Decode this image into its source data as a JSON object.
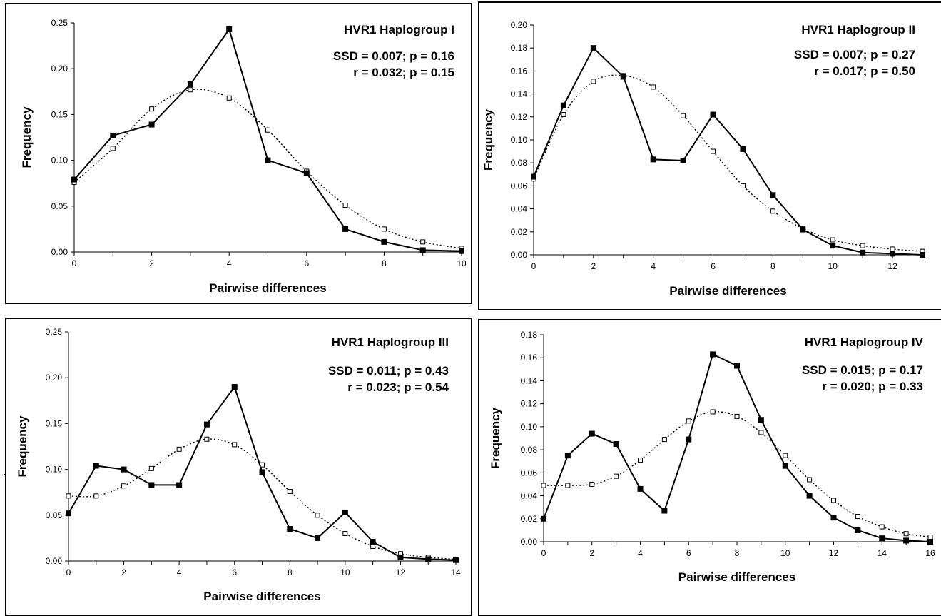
{
  "chart_data": [
    {
      "type": "line",
      "title": "HVR1 Haplogroup I",
      "stats": [
        "SSD = 0.007; p = 0.16",
        "r = 0.032; p = 0.15"
      ],
      "xlabel": "Pairwise differences",
      "ylabel": "Frequency",
      "xlim": [
        0,
        10
      ],
      "ylim": [
        0,
        0.25
      ],
      "xticks": [
        0,
        2,
        4,
        6,
        8,
        10
      ],
      "yticks": [
        0,
        0.05,
        0.1,
        0.15,
        0.2,
        0.25
      ],
      "ytick_labels": [
        "0.00",
        "0.05",
        "0.10",
        "0.15",
        "0.20",
        "0.25"
      ],
      "grid": false,
      "series": [
        {
          "style": "solid",
          "marker": "filled-square",
          "x": [
            0,
            1,
            2,
            3,
            4,
            5,
            6,
            7,
            8,
            9,
            10
          ],
          "y": [
            0.079,
            0.127,
            0.139,
            0.183,
            0.243,
            0.1,
            0.086,
            0.025,
            0.011,
            0.002,
            0.001
          ]
        },
        {
          "style": "dotted",
          "marker": "open-square",
          "x": [
            0,
            1,
            2,
            3,
            4,
            5,
            6,
            7,
            8,
            9,
            10
          ],
          "y": [
            0.076,
            0.113,
            0.156,
            0.177,
            0.168,
            0.133,
            0.088,
            0.051,
            0.025,
            0.011,
            0.004
          ]
        }
      ]
    },
    {
      "type": "line",
      "title": "HVR1 Haplogroup II",
      "stats": [
        "SSD = 0.007; p = 0.27",
        "r = 0.017; p = 0.50"
      ],
      "xlabel": "Pairwise differences",
      "ylabel": "Frequency",
      "xlim": [
        0,
        13
      ],
      "ylim": [
        0,
        0.2
      ],
      "xticks": [
        0,
        2,
        4,
        6,
        8,
        10,
        12
      ],
      "yticks": [
        0,
        0.02,
        0.04,
        0.06,
        0.08,
        0.1,
        0.12,
        0.14,
        0.16,
        0.18,
        0.2
      ],
      "ytick_labels": [
        "0.00",
        "0.02",
        "0.04",
        "0.06",
        "0.08",
        "0.10",
        "0.12",
        "0.14",
        "0.16",
        "0.18",
        "0.20"
      ],
      "grid": false,
      "series": [
        {
          "style": "solid",
          "marker": "filled-square",
          "x": [
            0,
            1,
            2,
            3,
            4,
            5,
            6,
            7,
            8,
            9,
            10,
            11,
            12,
            13
          ],
          "y": [
            0.068,
            0.13,
            0.18,
            0.155,
            0.083,
            0.082,
            0.122,
            0.092,
            0.052,
            0.022,
            0.008,
            0.002,
            0.001,
            0.0
          ]
        },
        {
          "style": "dotted",
          "marker": "open-square",
          "x": [
            0,
            1,
            2,
            3,
            4,
            5,
            6,
            7,
            8,
            9,
            10,
            11,
            12,
            13
          ],
          "y": [
            0.066,
            0.122,
            0.151,
            0.156,
            0.146,
            0.121,
            0.09,
            0.06,
            0.038,
            0.023,
            0.013,
            0.008,
            0.005,
            0.003
          ]
        }
      ]
    },
    {
      "type": "line",
      "title": "HVR1 Haplogroup III",
      "stats": [
        "SSD = 0.011; p = 0.43",
        "r = 0.023; p = 0.54"
      ],
      "xlabel": "Pairwise differences",
      "ylabel": "Frequency",
      "xlim": [
        0,
        14
      ],
      "ylim": [
        0,
        0.25
      ],
      "xticks": [
        0,
        2,
        4,
        6,
        8,
        10,
        12,
        14
      ],
      "yticks": [
        0,
        0.05,
        0.1,
        0.15,
        0.2,
        0.25
      ],
      "ytick_labels": [
        "0.00",
        "0.05",
        "0.10",
        "0.15",
        "0.20",
        "0.25"
      ],
      "grid": false,
      "series": [
        {
          "style": "solid",
          "marker": "filled-square",
          "x": [
            0,
            1,
            2,
            3,
            4,
            5,
            6,
            7,
            8,
            9,
            10,
            11,
            12,
            13,
            14
          ],
          "y": [
            0.052,
            0.104,
            0.1,
            0.083,
            0.083,
            0.149,
            0.19,
            0.097,
            0.035,
            0.025,
            0.053,
            0.021,
            0.004,
            0.002,
            0.001
          ]
        },
        {
          "style": "dotted",
          "marker": "open-square",
          "x": [
            0,
            1,
            2,
            3,
            4,
            5,
            6,
            7,
            8,
            9,
            10,
            11,
            12,
            13,
            14
          ],
          "y": [
            0.071,
            0.071,
            0.082,
            0.101,
            0.122,
            0.133,
            0.127,
            0.105,
            0.076,
            0.05,
            0.03,
            0.016,
            0.008,
            0.004,
            0.002
          ]
        }
      ]
    },
    {
      "type": "line",
      "title": "HVR1 Haplogroup IV",
      "stats": [
        "SSD = 0.015; p = 0.17",
        "r = 0.020; p = 0.33"
      ],
      "xlabel": "Pairwise differences",
      "ylabel": "Frequency",
      "xlim": [
        0,
        16
      ],
      "ylim": [
        0,
        0.18
      ],
      "xticks": [
        0,
        2,
        4,
        6,
        8,
        10,
        12,
        14,
        16
      ],
      "yticks": [
        0,
        0.02,
        0.04,
        0.06,
        0.08,
        0.1,
        0.12,
        0.14,
        0.16,
        0.18
      ],
      "ytick_labels": [
        "0.00",
        "0.02",
        "0.04",
        "0.06",
        "0.08",
        "0.10",
        "0.12",
        "0.14",
        "0.16",
        "0.18"
      ],
      "grid": false,
      "series": [
        {
          "style": "solid",
          "marker": "filled-square",
          "x": [
            0,
            1,
            2,
            3,
            4,
            5,
            6,
            7,
            8,
            9,
            10,
            11,
            12,
            13,
            14,
            15,
            16
          ],
          "y": [
            0.02,
            0.075,
            0.094,
            0.085,
            0.046,
            0.027,
            0.089,
            0.163,
            0.153,
            0.106,
            0.066,
            0.04,
            0.021,
            0.01,
            0.003,
            0.001,
            0.0
          ]
        },
        {
          "style": "dotted",
          "marker": "open-square",
          "x": [
            0,
            1,
            2,
            3,
            4,
            5,
            6,
            7,
            8,
            9,
            10,
            11,
            12,
            13,
            14,
            15,
            16
          ],
          "y": [
            0.049,
            0.049,
            0.05,
            0.057,
            0.071,
            0.089,
            0.105,
            0.113,
            0.109,
            0.095,
            0.075,
            0.054,
            0.036,
            0.022,
            0.013,
            0.007,
            0.004
          ]
        }
      ]
    }
  ]
}
